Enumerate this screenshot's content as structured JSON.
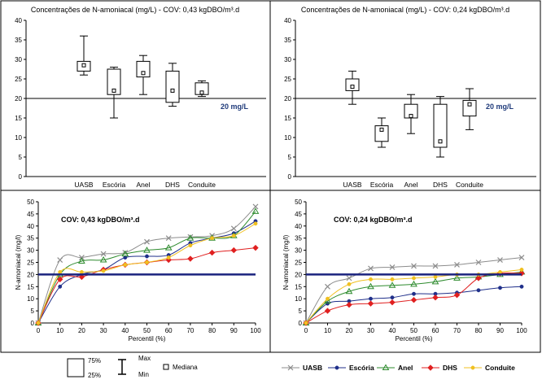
{
  "chart_data": [
    {
      "type": "box",
      "title": "Concentrações de N-amoniacal (mg/L) - COV: 0,43 kgDBO/m³.d",
      "categories": [
        "UASB",
        "Escória",
        "Anel",
        "DHS",
        "Conduite"
      ],
      "ylim": [
        0,
        40
      ],
      "yticks": [
        "0",
        "5",
        "10",
        "15",
        "20",
        "25",
        "30",
        "35",
        "40"
      ],
      "reference_line": {
        "value": 20,
        "label": "20 mg/L"
      },
      "boxes": [
        {
          "min": 26,
          "q1": 27,
          "median": 28.5,
          "q3": 29.5,
          "max": 36
        },
        {
          "min": 15,
          "q1": 21,
          "median": 22,
          "q3": 27.5,
          "max": 28
        },
        {
          "min": 21,
          "q1": 25.5,
          "median": 26.5,
          "q3": 29.5,
          "max": 31
        },
        {
          "min": 18,
          "q1": 19,
          "median": 22,
          "q3": 27,
          "max": 29
        },
        {
          "min": 20.5,
          "q1": 21,
          "median": 21.5,
          "q3": 24,
          "max": 24.5
        }
      ]
    },
    {
      "type": "box",
      "title": "Concentrações de N-amoniacal (mg/L) - COV: 0,24 kgDBO/m³.d",
      "categories": [
        "UASB",
        "Escória",
        "Anel",
        "DHS",
        "Conduite"
      ],
      "ylim": [
        0,
        40
      ],
      "yticks": [
        "0",
        "5",
        "10",
        "15",
        "20",
        "25",
        "30",
        "35",
        "40"
      ],
      "reference_line": {
        "value": 20,
        "label": "20 mg/L"
      },
      "boxes": [
        {
          "min": 18.5,
          "q1": 22,
          "median": 23,
          "q3": 25,
          "max": 27
        },
        {
          "min": 7.5,
          "q1": 9,
          "median": 12,
          "q3": 13,
          "max": 15
        },
        {
          "min": 11,
          "q1": 15,
          "median": 15.5,
          "q3": 18.5,
          "max": 21
        },
        {
          "min": 5,
          "q1": 7.5,
          "median": 9,
          "q3": 18.5,
          "max": 20.5
        },
        {
          "min": 12,
          "q1": 15.5,
          "median": 18.5,
          "q3": 19.5,
          "max": 22.5
        }
      ]
    },
    {
      "type": "line",
      "annotation": "COV: 0,43 kgDBO/m³.d",
      "xlabel": "Percentil (%)",
      "ylabel": "N-amoniacal (mg/l)",
      "x": [
        0,
        10,
        20,
        30,
        40,
        50,
        60,
        70,
        80,
        90,
        100
      ],
      "xticks": [
        "0",
        "10",
        "20",
        "30",
        "40",
        "50",
        "60",
        "70",
        "80",
        "90",
        "100"
      ],
      "yticks": [
        "0",
        "5",
        "10",
        "15",
        "20",
        "25",
        "30",
        "35",
        "40",
        "45",
        "50"
      ],
      "xlim": [
        0,
        100
      ],
      "ylim": [
        0,
        50
      ],
      "reference_line": {
        "value": 20
      },
      "series": [
        {
          "name": "UASB",
          "values": [
            0,
            26,
            27,
            28.5,
            29,
            33.5,
            35,
            35.5,
            36,
            39,
            48
          ],
          "color": "#8c8c8c",
          "marker": "x"
        },
        {
          "name": "Escória",
          "values": [
            0,
            15,
            20,
            22,
            27,
            27.5,
            28,
            33,
            35,
            37,
            42
          ],
          "color": "#1f2f8a",
          "marker": "dot"
        },
        {
          "name": "Anel",
          "values": [
            0,
            20,
            25.5,
            26,
            28.5,
            30,
            31,
            35,
            35,
            36,
            46
          ],
          "color": "#2e8b2e",
          "marker": "triangle"
        },
        {
          "name": "DHS",
          "values": [
            0,
            18,
            19,
            22,
            24,
            25,
            26,
            26.5,
            29,
            30,
            31
          ],
          "color": "#e02020",
          "marker": "diamond"
        },
        {
          "name": "Conduite",
          "values": [
            0,
            21,
            21,
            21.5,
            24,
            25,
            27,
            32,
            35,
            36,
            41
          ],
          "color": "#f0c020",
          "marker": "dot"
        }
      ]
    },
    {
      "type": "line",
      "annotation": "COV: 0,24 kgDBO/m³.d",
      "xlabel": "Percentil (%)",
      "ylabel": "N-amoniacal (mg/l)",
      "x": [
        0,
        10,
        20,
        30,
        40,
        50,
        60,
        70,
        80,
        90,
        100
      ],
      "xticks": [
        "0",
        "10",
        "20",
        "30",
        "40",
        "50",
        "60",
        "70",
        "80",
        "90",
        "100"
      ],
      "yticks": [
        "0",
        "5",
        "10",
        "15",
        "20",
        "25",
        "30",
        "35",
        "40",
        "45",
        "50"
      ],
      "xlim": [
        0,
        100
      ],
      "ylim": [
        0,
        50
      ],
      "reference_line": {
        "value": 20
      },
      "series": [
        {
          "name": "UASB",
          "values": [
            0,
            15,
            18.5,
            22.5,
            23,
            23.5,
            23.5,
            24,
            25,
            26,
            27
          ],
          "color": "#8c8c8c",
          "marker": "x"
        },
        {
          "name": "Escória",
          "values": [
            0,
            8,
            9,
            10,
            10.5,
            12,
            12,
            12.5,
            13.5,
            14.5,
            15
          ],
          "color": "#1f2f8a",
          "marker": "dot"
        },
        {
          "name": "Anel",
          "values": [
            0,
            9,
            13,
            15,
            15.5,
            16,
            17,
            18.5,
            19,
            20,
            21
          ],
          "color": "#2e8b2e",
          "marker": "triangle"
        },
        {
          "name": "DHS",
          "values": [
            0,
            5,
            7.5,
            8,
            8.5,
            9.5,
            10.5,
            11.5,
            18.5,
            20.5,
            20.5
          ],
          "color": "#e02020",
          "marker": "diamond"
        },
        {
          "name": "Conduite",
          "values": [
            0,
            10,
            16,
            18,
            18,
            18.5,
            19,
            20,
            20,
            21,
            22
          ],
          "color": "#f0c020",
          "marker": "dot"
        }
      ]
    }
  ],
  "box_legend": {
    "q3_label": "75%",
    "q1_label": "25%",
    "max_label": "Max",
    "min_label": "Min",
    "median_label": "Mediana"
  },
  "colors": {
    "reference_line_box": "#000000",
    "reference_line_curve": "#1a237e",
    "reference_label": "#1f3a7a"
  }
}
